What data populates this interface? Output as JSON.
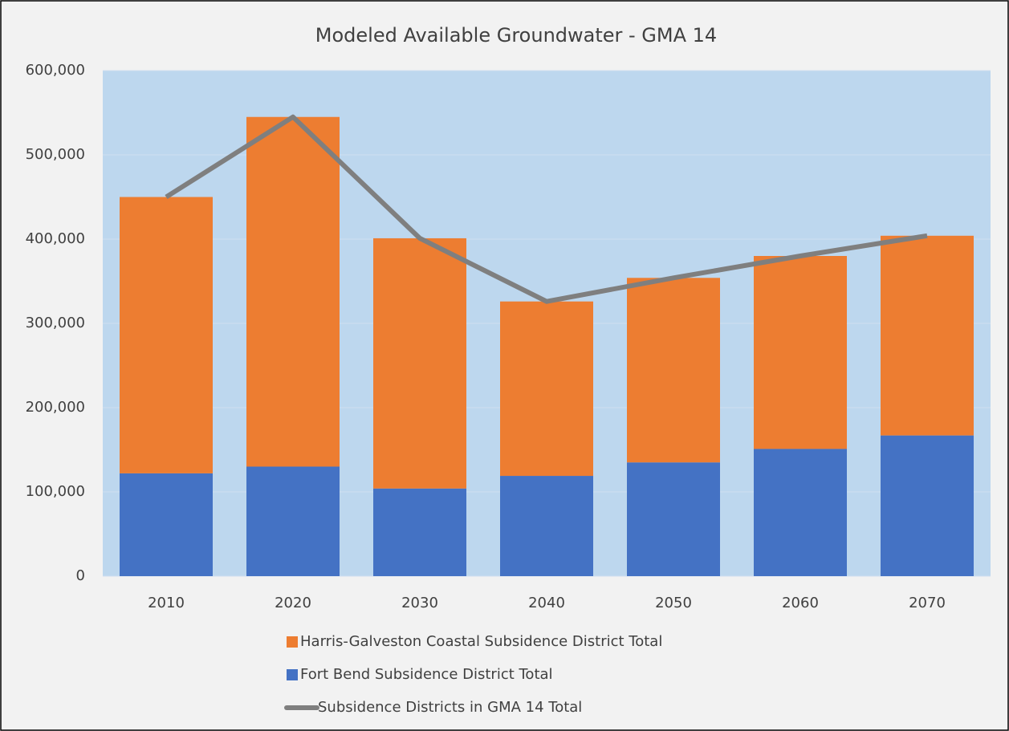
{
  "chart_data": {
    "type": "bar",
    "stacked": true,
    "title": "Modeled Available Groundwater - GMA 14",
    "categories": [
      "2010",
      "2020",
      "2030",
      "2040",
      "2050",
      "2060",
      "2070"
    ],
    "series": [
      {
        "name": "Fort Bend Subsidence District Total",
        "type": "bar",
        "color": "#4472c4",
        "values": [
          122000,
          130000,
          104000,
          119000,
          135000,
          151000,
          167000
        ]
      },
      {
        "name": "Harris-Galveston Coastal Subsidence District Total",
        "type": "bar",
        "color": "#ed7d31",
        "values": [
          328000,
          415000,
          297000,
          207000,
          219000,
          229000,
          237000
        ]
      },
      {
        "name": "Subsidence Districts in GMA 14 Total",
        "type": "line",
        "color": "#7f7f7f",
        "values": [
          450000,
          545000,
          401000,
          326000,
          354000,
          380000,
          404000
        ]
      }
    ],
    "legend_order": [
      1,
      0,
      2
    ],
    "ylim": [
      0,
      600000
    ],
    "yticks": [
      0,
      {
        "value": 100000,
        "label": "100,000"
      },
      {
        "value": 200000,
        "label": "200,000"
      },
      {
        "value": 300000,
        "label": "300,000"
      },
      {
        "value": 400000,
        "label": "400,000"
      },
      {
        "value": 500000,
        "label": "500,000"
      },
      {
        "value": 600000,
        "label": "600,000"
      }
    ],
    "grid": true,
    "plot_background": "#bdd7ee"
  }
}
